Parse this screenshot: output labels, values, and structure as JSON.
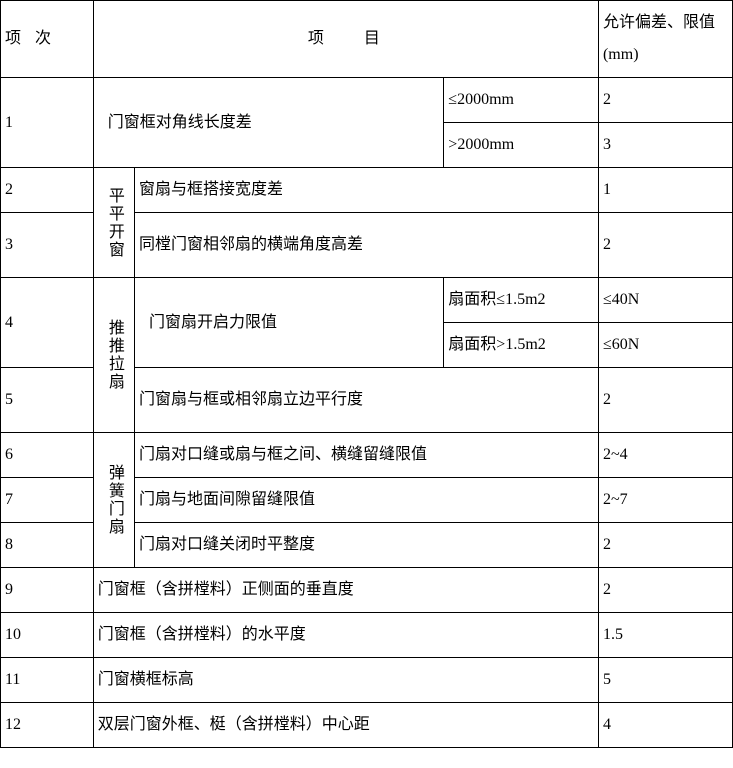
{
  "header": {
    "index": "项次",
    "item": "项目",
    "tol": "允许偏差、限值",
    "unit": "(mm)"
  },
  "groups": {
    "g1": "平平开窗",
    "g2": "推推拉扇",
    "g3": "弹簧门扇"
  },
  "rows": {
    "r1": {
      "no": "1",
      "item": "门窗框对角线长度差",
      "sub1": "≤2000mm",
      "val1": "2",
      "sub2": ">2000mm",
      "val2": "3"
    },
    "r2": {
      "no": "2",
      "item": "窗扇与框搭接宽度差",
      "val": "1"
    },
    "r3": {
      "no": "3",
      "item": "同樘门窗相邻扇的横端角度高差",
      "val": "2"
    },
    "r4": {
      "no": "4",
      "item": "门窗扇开启力限值",
      "sub1": "扇面积≤1.5m2",
      "val1": "≤40N",
      "sub2": "扇面积>1.5m2",
      "val2": "≤60N"
    },
    "r5": {
      "no": "5",
      "item": "门窗扇与框或相邻扇立边平行度",
      "val": "2"
    },
    "r6": {
      "no": "6",
      "item": "门扇对口缝或扇与框之间、横缝留缝限值",
      "val": "2~4"
    },
    "r7": {
      "no": "7",
      "item": "门扇与地面间隙留缝限值",
      "val": "2~7"
    },
    "r8": {
      "no": "8",
      "item": "门扇对口缝关闭时平整度",
      "val": "2"
    },
    "r9": {
      "no": "9",
      "item": "门窗框（含拼樘料）正侧面的垂直度",
      "val": "2"
    },
    "r10": {
      "no": "10",
      "item": "门窗框（含拼樘料）的水平度",
      "val": "1.5"
    },
    "r11": {
      "no": "11",
      "item": "门窗横框标高",
      "val": "5"
    },
    "r12": {
      "no": "12",
      "item": "双层门窗外框、梃（含拼樘料）中心距",
      "val": "4"
    }
  },
  "style": {
    "font_family": "SimSun",
    "font_size_pt": 12,
    "border_color": "#000000",
    "background": "#ffffff",
    "text_color": "#000000"
  }
}
